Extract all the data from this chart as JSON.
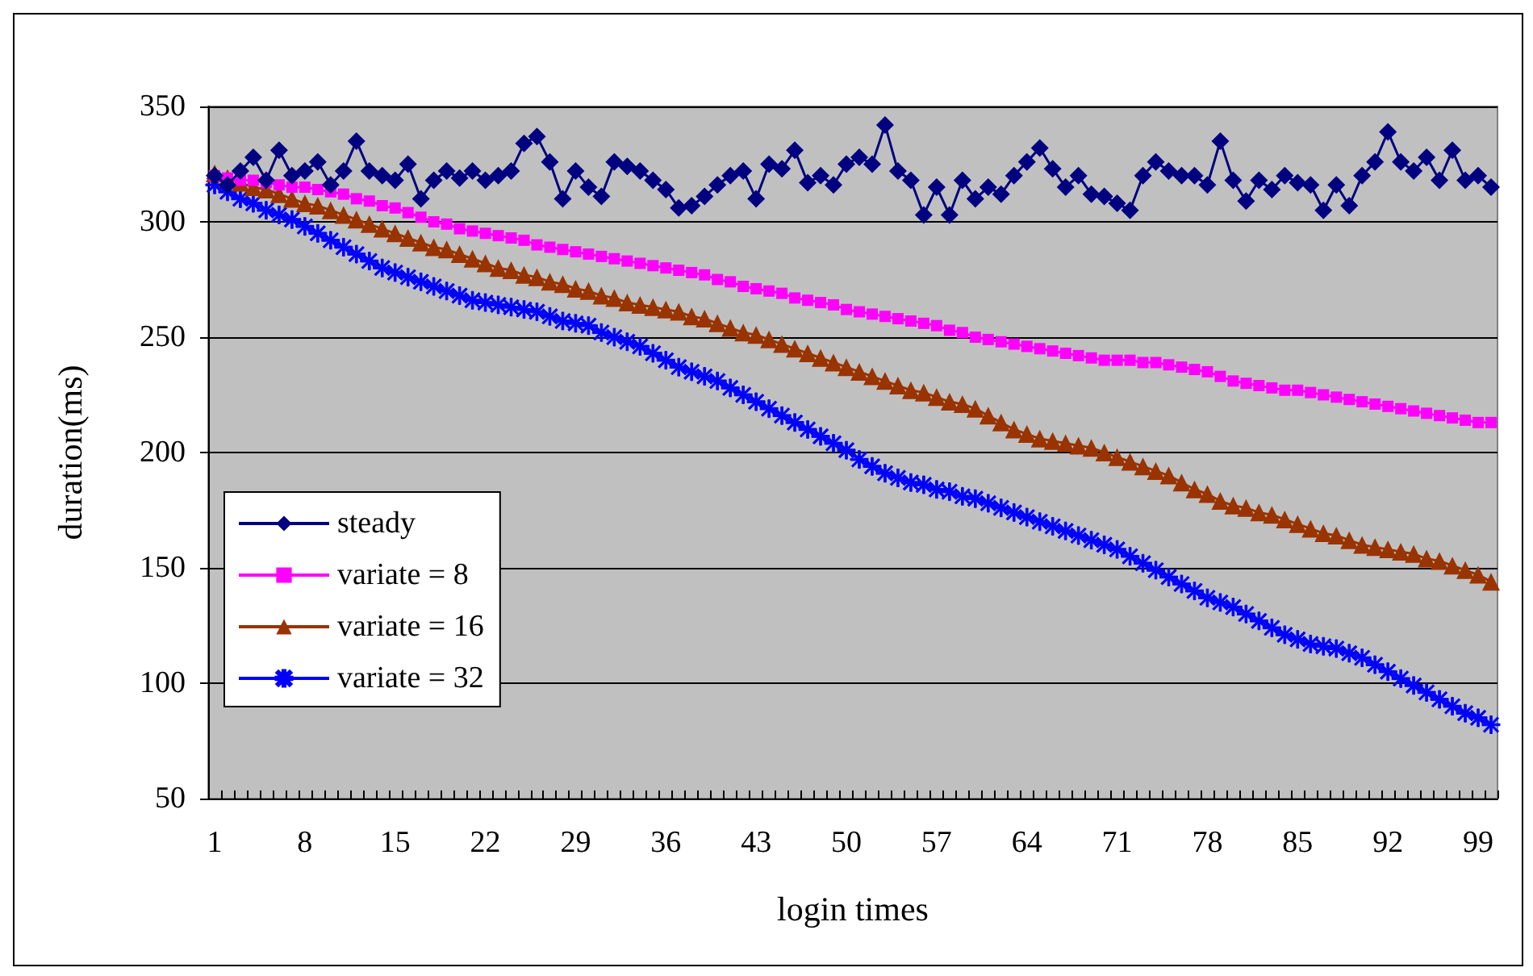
{
  "chart_data": {
    "type": "line",
    "xlabel": "login times",
    "ylabel": "duration(ms)",
    "categories": [
      "1",
      null,
      null,
      null,
      null,
      null,
      null,
      "8",
      null,
      null,
      null,
      null,
      null,
      null,
      "15",
      null,
      null,
      null,
      null,
      null,
      null,
      "22",
      null,
      null,
      null,
      null,
      null,
      null,
      "29",
      null,
      null,
      null,
      null,
      null,
      null,
      "36",
      null,
      null,
      null,
      null,
      null,
      null,
      "43",
      null,
      null,
      null,
      null,
      null,
      null,
      "50",
      null,
      null,
      null,
      null,
      null,
      null,
      "57",
      null,
      null,
      null,
      null,
      null,
      null,
      "64",
      null,
      null,
      null,
      null,
      null,
      null,
      "71",
      null,
      null,
      null,
      null,
      null,
      null,
      "78",
      null,
      null,
      null,
      null,
      null,
      null,
      "85",
      null,
      null,
      null,
      null,
      null,
      null,
      "92",
      null,
      null,
      null,
      null,
      null,
      null,
      "99",
      null
    ],
    "ylim": [
      50,
      350
    ],
    "yticks": [
      50,
      100,
      150,
      200,
      250,
      300,
      350
    ],
    "grid": "y",
    "legend": "left",
    "series": [
      {
        "name": "steady",
        "color": "#000080",
        "marker": "diamond",
        "values": [
          320,
          316,
          322,
          328,
          318,
          331,
          320,
          322,
          326,
          316,
          322,
          335,
          322,
          320,
          318,
          325,
          310,
          318,
          322,
          319,
          322,
          318,
          320,
          322,
          334,
          337,
          326,
          310,
          322,
          315,
          311,
          326,
          324,
          322,
          318,
          314,
          306,
          307,
          311,
          316,
          320,
          322,
          310,
          325,
          323,
          331,
          317,
          320,
          316,
          325,
          328,
          325,
          342,
          322,
          318,
          303,
          315,
          303,
          318,
          310,
          315,
          312,
          320,
          326,
          332,
          323,
          315,
          320,
          312,
          311,
          308,
          305,
          320,
          326,
          322,
          320,
          320,
          316,
          335,
          318,
          309,
          318,
          314,
          320,
          317,
          316,
          305,
          316,
          307,
          320,
          326,
          339,
          326,
          322,
          328,
          318,
          331,
          318,
          320,
          315
        ]
      },
      {
        "name": "variate = 8",
        "color": "#ff00ff",
        "marker": "square",
        "values": [
          320,
          319,
          318,
          318,
          317,
          316,
          315,
          315,
          314,
          313,
          312,
          310,
          309,
          307,
          306,
          304,
          302,
          300,
          299,
          297,
          296,
          295,
          294,
          293,
          292,
          290,
          289,
          288,
          287,
          286,
          285,
          284,
          283,
          282,
          281,
          280,
          279,
          278,
          277,
          275,
          274,
          272,
          271,
          270,
          269,
          267,
          266,
          265,
          264,
          262,
          261,
          260,
          259,
          258,
          257,
          256,
          255,
          253,
          252,
          250,
          249,
          248,
          247,
          246,
          245,
          244,
          243,
          242,
          241,
          240,
          240,
          240,
          239,
          239,
          238,
          237,
          236,
          235,
          233,
          231,
          230,
          229,
          228,
          227,
          227,
          226,
          225,
          224,
          223,
          222,
          221,
          220,
          219,
          218,
          217,
          216,
          215,
          214,
          213,
          213
        ]
      },
      {
        "name": "variate = 16",
        "color": "#993300",
        "marker": "triangle",
        "values": [
          321,
          319,
          317,
          315,
          314,
          312,
          310,
          308,
          307,
          305,
          303,
          301,
          299,
          297,
          295,
          293,
          291,
          289,
          288,
          286,
          284,
          282,
          280,
          279,
          277,
          276,
          274,
          273,
          271,
          270,
          268,
          267,
          265,
          264,
          263,
          262,
          261,
          259,
          258,
          256,
          254,
          252,
          251,
          249,
          247,
          245,
          243,
          241,
          239,
          237,
          235,
          233,
          231,
          229,
          227,
          226,
          224,
          222,
          221,
          219,
          216,
          213,
          210,
          208,
          206,
          205,
          204,
          203,
          202,
          200,
          198,
          196,
          194,
          192,
          190,
          187,
          184,
          182,
          179,
          177,
          176,
          174,
          173,
          171,
          169,
          167,
          165,
          164,
          162,
          160,
          159,
          158,
          157,
          156,
          154,
          153,
          151,
          149,
          147,
          144
        ]
      },
      {
        "name": "variate = 32",
        "color": "#0000ff",
        "marker": "cross",
        "values": [
          316,
          313,
          310,
          308,
          305,
          303,
          301,
          298,
          295,
          292,
          289,
          286,
          283,
          280,
          278,
          276,
          274,
          272,
          270,
          268,
          266,
          265,
          264,
          263,
          262,
          261,
          259,
          257,
          256,
          255,
          252,
          250,
          248,
          246,
          243,
          240,
          237,
          235,
          233,
          231,
          228,
          225,
          222,
          219,
          216,
          213,
          210,
          207,
          204,
          201,
          197,
          194,
          191,
          189,
          187,
          186,
          184,
          183,
          181,
          180,
          178,
          176,
          174,
          172,
          170,
          168,
          166,
          164,
          162,
          160,
          158,
          155,
          152,
          149,
          146,
          143,
          140,
          137,
          135,
          133,
          130,
          127,
          124,
          121,
          119,
          117,
          116,
          115,
          113,
          111,
          108,
          105,
          102,
          99,
          96,
          93,
          90,
          87,
          85,
          82
        ]
      }
    ]
  }
}
